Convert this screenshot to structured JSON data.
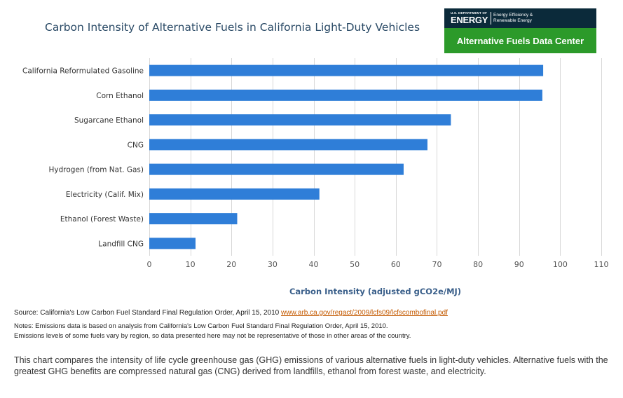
{
  "logo": {
    "small_text": "U.S. DEPARTMENT OF",
    "energy_text": "ENERGY",
    "eere_line1": "Energy Efficiency &",
    "eere_line2": "Renewable Energy",
    "afdc_text": "Alternative Fuels Data Center"
  },
  "source": {
    "prefix": "Source: California's Low Carbon Fuel Standard Final Regulation Order, April 15, 2010",
    "link_text": "www.arb.ca.gov/regact/2009/lcfs09/lcfscombofinal.pdf"
  },
  "notes": {
    "line1": "Notes: Emissions data is based on analysis from California's Low Carbon Fuel Standard Final Regulation Order, April 15, 2010.",
    "line2": "Emissions levels of some fuels vary by region, so data presented here may not be representative of those in other areas of the country."
  },
  "description": "This chart compares the intensity of life cycle greenhouse gas (GHG) emissions of various alternative fuels in light-duty vehicles. Alternative fuels with the greatest GHG benefits are compressed natural gas (CNG) derived from landfills, ethanol from forest waste, and electricity.",
  "colors": {
    "bar": "#2f7ed8",
    "grid": "#d8d8d8",
    "title": "#2a4a66",
    "axis_title": "#3a5f8a"
  },
  "chart_data": {
    "type": "bar",
    "orientation": "horizontal",
    "title": "Carbon Intensity of Alternative Fuels in California Light-Duty Vehicles",
    "xlabel": "Carbon Intensity (adjusted gCO2e/MJ)",
    "ylabel": "",
    "categories": [
      "California Reformulated Gasoline",
      "Corn Ethanol",
      "Sugarcane Ethanol",
      "CNG",
      "Hydrogen (from Nat. Gas)",
      "Electricity (Calif. Mix)",
      "Ethanol (Forest Waste)",
      "Landfill CNG"
    ],
    "values": [
      95.86,
      95.66,
      73.4,
      67.7,
      61.9,
      41.4,
      21.4,
      11.26
    ],
    "xlim": [
      0,
      110
    ],
    "ticks": [
      0,
      10,
      20,
      30,
      40,
      50,
      60,
      70,
      80,
      90,
      100,
      110
    ],
    "grid": true,
    "legend": "none"
  }
}
